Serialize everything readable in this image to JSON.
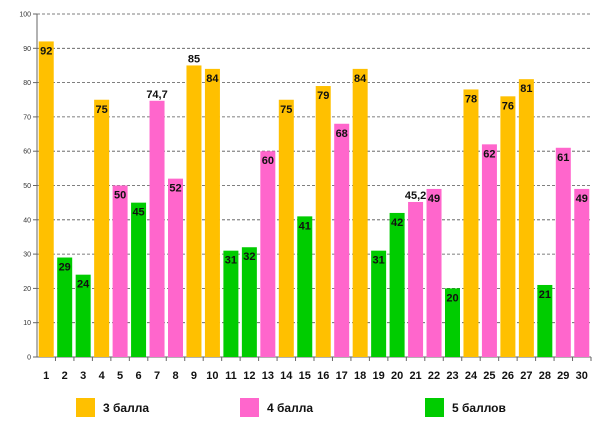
{
  "chart_data": {
    "type": "bar",
    "title": "",
    "xlabel": "",
    "ylabel": "",
    "ylim": [
      0,
      100
    ],
    "yticks": [
      "0",
      "10",
      "20",
      "30",
      "40",
      "50",
      "60",
      "70",
      "80",
      "90",
      "100"
    ],
    "grid": true,
    "categories": [
      "1",
      "2",
      "3",
      "4",
      "5",
      "6",
      "7",
      "8",
      "9",
      "10",
      "11",
      "12",
      "13",
      "14",
      "15",
      "16",
      "17",
      "18",
      "19",
      "20",
      "21",
      "22",
      "23",
      "24",
      "25",
      "26",
      "27",
      "28",
      "29",
      "30"
    ],
    "values": [
      92,
      29,
      24,
      75,
      50,
      45,
      74.7,
      52,
      85,
      84,
      31,
      32,
      60,
      75,
      41,
      79,
      68,
      84,
      31,
      42,
      45.2,
      49,
      20,
      78,
      62,
      76,
      81,
      21,
      61,
      49
    ],
    "value_labels": [
      "92",
      "29",
      "24",
      "75",
      "50",
      "45",
      "74,7",
      "52",
      "85",
      "84",
      "31",
      "32",
      "60",
      "75",
      "41",
      "79",
      "68",
      "84",
      "31",
      "42",
      "45,2",
      "49",
      "20",
      "78",
      "62",
      "76",
      "81",
      "21",
      "61",
      "49"
    ],
    "groups": [
      "g3",
      "g5",
      "g5",
      "g3",
      "g4",
      "g5",
      "g4",
      "g4",
      "g3",
      "g3",
      "g5",
      "g5",
      "g4",
      "g3",
      "g5",
      "g3",
      "g4",
      "g3",
      "g5",
      "g5",
      "g4",
      "g4",
      "g5",
      "g3",
      "g4",
      "g3",
      "g3",
      "g5",
      "g4",
      "g4"
    ],
    "label_inside": [
      true,
      true,
      true,
      true,
      true,
      true,
      false,
      true,
      false,
      true,
      true,
      true,
      true,
      true,
      true,
      true,
      true,
      true,
      true,
      true,
      false,
      true,
      true,
      true,
      true,
      true,
      true,
      true,
      true,
      true
    ],
    "legend": [
      {
        "key": "g3",
        "label": "3 балла",
        "color": "#ffc000"
      },
      {
        "key": "g4",
        "label": "4 балла",
        "color": "#ff66cc"
      },
      {
        "key": "g5",
        "label": "5 баллов",
        "color": "#00cc00"
      }
    ],
    "legend_position": "bottom"
  }
}
